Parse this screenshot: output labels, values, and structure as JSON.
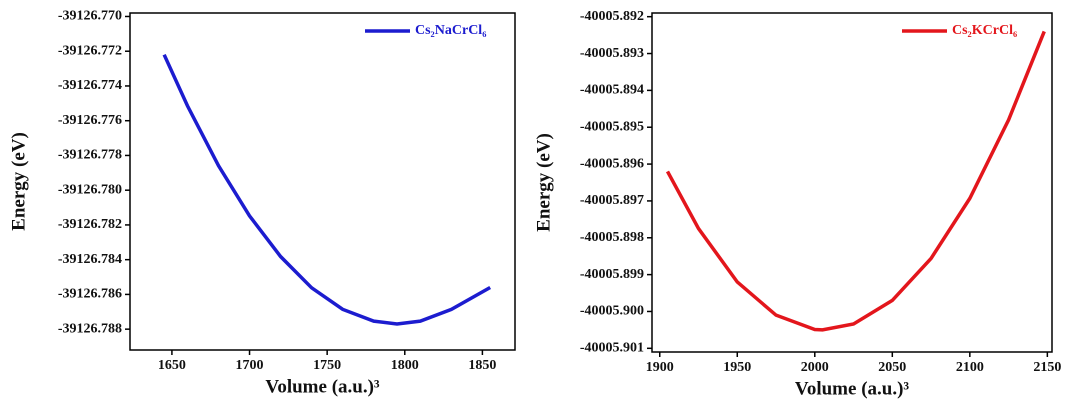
{
  "chart_data": [
    {
      "type": "line",
      "x_label": "Volume (a.u.)³",
      "y_label": "Energy (eV)",
      "legend": "upper right",
      "x": [
        1645,
        1660,
        1680,
        1700,
        1720,
        1740,
        1760,
        1780,
        1795,
        1810,
        1830,
        1855
      ],
      "series": [
        {
          "name": "Cs₂NaCrCl₆",
          "color": "#1c1ccf",
          "values": [
            -39126.7722,
            -39126.77514,
            -39126.77859,
            -39126.78148,
            -39126.78382,
            -39126.78562,
            -39126.78686,
            -39126.78754,
            -39126.7877,
            -39126.78754,
            -39126.78686,
            -39126.7856
          ]
        }
      ],
      "xlim": [
        1623,
        1871
      ],
      "xticks": [
        1650,
        1700,
        1750,
        1800,
        1850
      ],
      "ylim": [
        -39126.7892,
        -39126.7698
      ],
      "yticks": [
        {
          "value": -39126.77,
          "label": "-39126.770"
        },
        -39126.772,
        -39126.774,
        -39126.776,
        -39126.778,
        {
          "value": -39126.78,
          "label": "-39126.780"
        },
        -39126.782,
        -39126.784,
        -39126.786,
        -39126.788
      ]
    },
    {
      "type": "line",
      "x_label": "Volume (a.u.)³",
      "y_label": "Energy (eV)",
      "legend": "upper right",
      "x": [
        1905,
        1925,
        1950,
        1975,
        2000,
        2005,
        2025,
        2050,
        2075,
        2100,
        2125,
        2148
      ],
      "series": [
        {
          "name": "Cs₂KCrCl₆",
          "color": "#e3161c",
          "values": [
            -40005.8962,
            -40005.89775,
            -40005.8992,
            -40005.9001,
            -40005.90049,
            -40005.9005,
            -40005.90034,
            -40005.8997,
            -40005.89856,
            -40005.89693,
            -40005.8948,
            -40005.8924
          ]
        }
      ],
      "xlim": [
        1895,
        2153
      ],
      "xticks": [
        1900,
        1950,
        2000,
        2050,
        2100,
        2150
      ],
      "ylim": [
        -40005.9011,
        -40005.8919
      ],
      "yticks": [
        -40005.892,
        -40005.893,
        -40005.894,
        -40005.895,
        -40005.896,
        -40005.897,
        -40005.898,
        -40005.899,
        {
          "value": -40005.9,
          "label": "-40005.900"
        },
        -40005.901
      ]
    }
  ]
}
